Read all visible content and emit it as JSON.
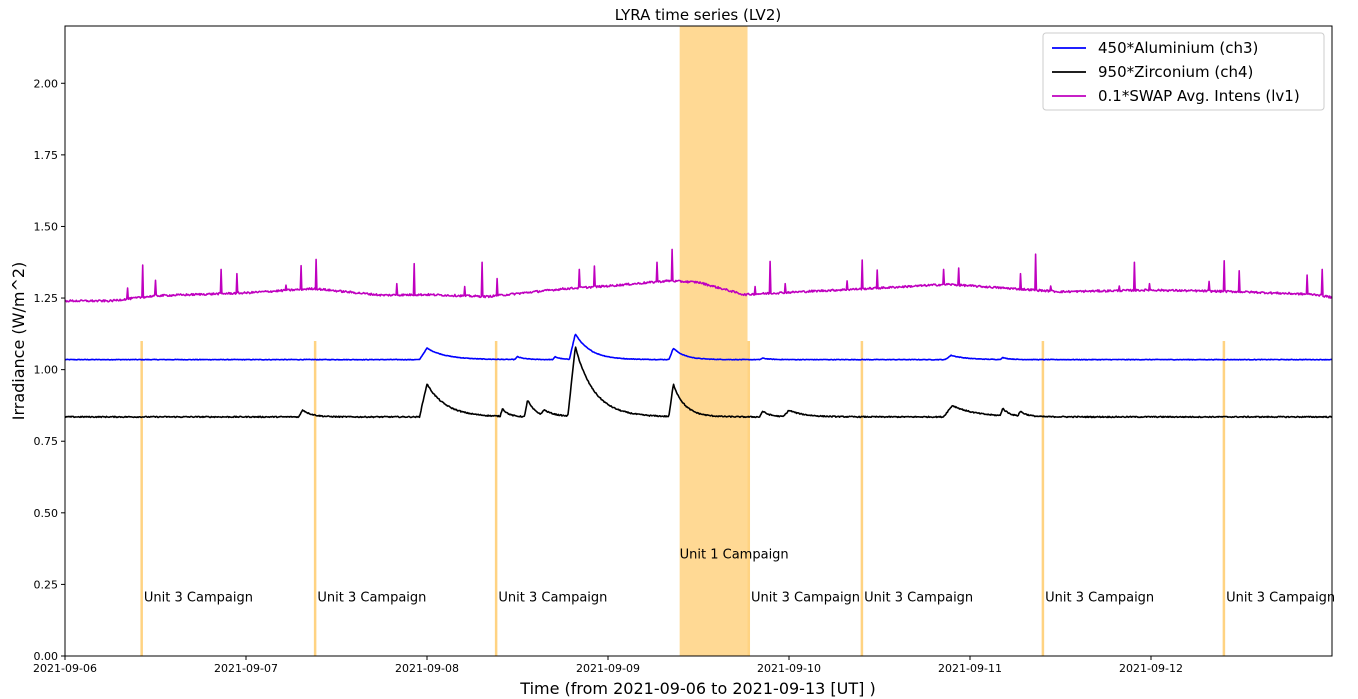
{
  "chart_data": {
    "type": "line",
    "title": "LYRA time series (LV2)",
    "xlabel": "Time (from 2021-09-06 to 2021-09-13 [UT] )",
    "ylabel": "Irradiance (W/m^2)",
    "xlim": [
      "2021-09-06 00:00",
      "2021-09-13 00:00"
    ],
    "ylim": [
      0,
      2.2
    ],
    "x_ticks": [
      "2021-09-06",
      "2021-09-07",
      "2021-09-08",
      "2021-09-09",
      "2021-09-10",
      "2021-09-11",
      "2021-09-12"
    ],
    "y_ticks": [
      "0.00",
      "0.25",
      "0.50",
      "0.75",
      "1.00",
      "1.25",
      "1.50",
      "1.75",
      "2.00"
    ],
    "legend": {
      "position": "top-right"
    },
    "series": [
      {
        "name": "450*Aluminium (ch3)",
        "color": "#0000ff",
        "baseline": 1.035,
        "peaks": [
          {
            "x": "2021-09-08 00:00",
            "y": 1.075,
            "width_h": 2.5
          },
          {
            "x": "2021-09-08 12:00",
            "y": 1.045,
            "width_h": 1.0
          },
          {
            "x": "2021-09-08 17:00",
            "y": 1.045,
            "width_h": 0.8
          },
          {
            "x": "2021-09-08 19:40",
            "y": 1.125,
            "width_h": 2.0
          },
          {
            "x": "2021-09-09 08:40",
            "y": 1.075,
            "width_h": 1.5
          },
          {
            "x": "2021-09-09 20:30",
            "y": 1.04,
            "width_h": 1.0
          },
          {
            "x": "2021-09-10 21:30",
            "y": 1.05,
            "width_h": 2.0
          },
          {
            "x": "2021-09-11 04:20",
            "y": 1.042,
            "width_h": 1.0
          }
        ]
      },
      {
        "name": "950*Zirconium (ch4)",
        "color": "#000000",
        "baseline": 0.835,
        "peaks": [
          {
            "x": "2021-09-07 07:30",
            "y": 0.86,
            "width_h": 1.2
          },
          {
            "x": "2021-09-08 00:00",
            "y": 0.95,
            "width_h": 2.5
          },
          {
            "x": "2021-09-08 02:00",
            "y": 0.86,
            "width_h": 0.8
          },
          {
            "x": "2021-09-08 10:00",
            "y": 0.865,
            "width_h": 0.8
          },
          {
            "x": "2021-09-08 13:20",
            "y": 0.895,
            "width_h": 1.0
          },
          {
            "x": "2021-09-08 15:30",
            "y": 0.86,
            "width_h": 1.5
          },
          {
            "x": "2021-09-08 19:40",
            "y": 1.08,
            "width_h": 2.5
          },
          {
            "x": "2021-09-09 08:40",
            "y": 0.95,
            "width_h": 1.5
          },
          {
            "x": "2021-09-09 20:30",
            "y": 0.855,
            "width_h": 1.0
          },
          {
            "x": "2021-09-10 00:00",
            "y": 0.858,
            "width_h": 2.0
          },
          {
            "x": "2021-09-10 21:40",
            "y": 0.875,
            "width_h": 3.0
          },
          {
            "x": "2021-09-11 04:20",
            "y": 0.865,
            "width_h": 1.0
          },
          {
            "x": "2021-09-11 06:40",
            "y": 0.855,
            "width_h": 1.0
          }
        ]
      },
      {
        "name": "0.1*SWAP Avg. Intens (lv1)",
        "color": "#bf00bf",
        "baseline_points": [
          {
            "x": "2021-09-06 00:00",
            "y": 1.24
          },
          {
            "x": "2021-09-06 06:00",
            "y": 1.24
          },
          {
            "x": "2021-09-06 12:00",
            "y": 1.258
          },
          {
            "x": "2021-09-07 00:00",
            "y": 1.268
          },
          {
            "x": "2021-09-07 09:00",
            "y": 1.283
          },
          {
            "x": "2021-09-07 12:00",
            "y": 1.275
          },
          {
            "x": "2021-09-07 18:00",
            "y": 1.26
          },
          {
            "x": "2021-09-08 00:00",
            "y": 1.262
          },
          {
            "x": "2021-09-08 08:00",
            "y": 1.255
          },
          {
            "x": "2021-09-08 18:00",
            "y": 1.282
          },
          {
            "x": "2021-09-09 00:00",
            "y": 1.292
          },
          {
            "x": "2021-09-09 08:00",
            "y": 1.31
          },
          {
            "x": "2021-09-09 12:00",
            "y": 1.305
          },
          {
            "x": "2021-09-09 18:00",
            "y": 1.262
          },
          {
            "x": "2021-09-10 00:00",
            "y": 1.27
          },
          {
            "x": "2021-09-10 12:00",
            "y": 1.285
          },
          {
            "x": "2021-09-10 21:00",
            "y": 1.298
          },
          {
            "x": "2021-09-11 12:00",
            "y": 1.272
          },
          {
            "x": "2021-09-12 00:00",
            "y": 1.278
          },
          {
            "x": "2021-09-12 12:00",
            "y": 1.272
          },
          {
            "x": "2021-09-12 22:00",
            "y": 1.262
          },
          {
            "x": "2021-09-13 00:00",
            "y": 1.252
          }
        ],
        "spikes": [
          {
            "x": "2021-09-06 08:20",
            "y": 1.285
          },
          {
            "x": "2021-09-06 10:20",
            "y": 1.365
          },
          {
            "x": "2021-09-06 12:00",
            "y": 1.312
          },
          {
            "x": "2021-09-06 20:40",
            "y": 1.35
          },
          {
            "x": "2021-09-06 22:50",
            "y": 1.335
          },
          {
            "x": "2021-09-07 05:20",
            "y": 1.295
          },
          {
            "x": "2021-09-07 07:20",
            "y": 1.363
          },
          {
            "x": "2021-09-07 09:20",
            "y": 1.385
          },
          {
            "x": "2021-09-07 20:00",
            "y": 1.3
          },
          {
            "x": "2021-09-07 22:20",
            "y": 1.37
          },
          {
            "x": "2021-09-08 05:00",
            "y": 1.29
          },
          {
            "x": "2021-09-08 07:20",
            "y": 1.375
          },
          {
            "x": "2021-09-08 09:20",
            "y": 1.318
          },
          {
            "x": "2021-09-08 20:10",
            "y": 1.35
          },
          {
            "x": "2021-09-08 22:10",
            "y": 1.362
          },
          {
            "x": "2021-09-09 06:30",
            "y": 1.375
          },
          {
            "x": "2021-09-09 08:30",
            "y": 1.42
          },
          {
            "x": "2021-09-09 19:30",
            "y": 1.29
          },
          {
            "x": "2021-09-09 21:30",
            "y": 1.378
          },
          {
            "x": "2021-09-09 23:30",
            "y": 1.3
          },
          {
            "x": "2021-09-10 07:40",
            "y": 1.31
          },
          {
            "x": "2021-09-10 09:40",
            "y": 1.383
          },
          {
            "x": "2021-09-10 11:40",
            "y": 1.348
          },
          {
            "x": "2021-09-10 20:30",
            "y": 1.35
          },
          {
            "x": "2021-09-10 22:30",
            "y": 1.355
          },
          {
            "x": "2021-09-11 06:40",
            "y": 1.335
          },
          {
            "x": "2021-09-11 08:40",
            "y": 1.403
          },
          {
            "x": "2021-09-11 10:40",
            "y": 1.292
          },
          {
            "x": "2021-09-11 19:50",
            "y": 1.292
          },
          {
            "x": "2021-09-11 21:50",
            "y": 1.375
          },
          {
            "x": "2021-09-11 23:50",
            "y": 1.3
          },
          {
            "x": "2021-09-12 07:40",
            "y": 1.308
          },
          {
            "x": "2021-09-12 09:40",
            "y": 1.38
          },
          {
            "x": "2021-09-12 11:40",
            "y": 1.345
          },
          {
            "x": "2021-09-12 20:40",
            "y": 1.33
          },
          {
            "x": "2021-09-12 22:40",
            "y": 1.35
          }
        ]
      }
    ],
    "campaigns": [
      {
        "label": "Unit 3 Campaign",
        "start": "2021-09-06 10:00",
        "end": "2021-09-06 10:12",
        "label_y": 0.19
      },
      {
        "label": "Unit 3 Campaign",
        "start": "2021-09-07 09:00",
        "end": "2021-09-07 09:12",
        "label_y": 0.19
      },
      {
        "label": "Unit 3 Campaign",
        "start": "2021-09-08 09:00",
        "end": "2021-09-08 09:12",
        "label_y": 0.19
      },
      {
        "label": "Unit 1 Campaign",
        "start": "2021-09-09 09:30",
        "end": "2021-09-09 18:30",
        "label_y": 0.34
      },
      {
        "label": "Unit 3 Campaign",
        "start": "2021-09-09 18:30",
        "end": "2021-09-09 18:42",
        "label_y": 0.19
      },
      {
        "label": "Unit 3 Campaign",
        "start": "2021-09-10 09:30",
        "end": "2021-09-10 09:42",
        "label_y": 0.19
      },
      {
        "label": "Unit 3 Campaign",
        "start": "2021-09-11 09:30",
        "end": "2021-09-11 09:42",
        "label_y": 0.19
      },
      {
        "label": "Unit 3 Campaign",
        "start": "2021-09-12 09:30",
        "end": "2021-09-12 09:42",
        "label_y": 0.19
      }
    ],
    "campaign_line_top": 1.1,
    "campaign_color": "#ffc04d"
  }
}
